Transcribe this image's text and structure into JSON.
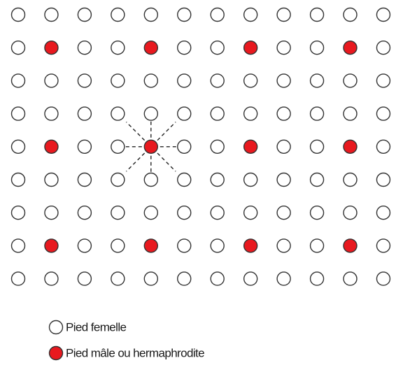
{
  "legend": [
    {
      "label": "Pied femelle"
    },
    {
      "label": "Pied mâle ou hermaphrodite"
    }
  ]
}
